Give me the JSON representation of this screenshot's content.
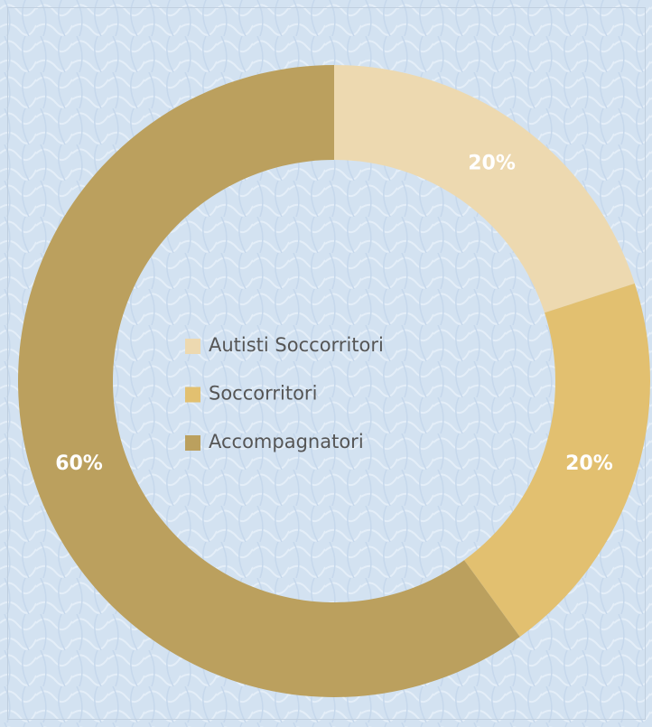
{
  "chart_data": {
    "type": "donut",
    "categories": [
      "Autisti Soccorritori",
      "Soccorritori",
      "Accompagnatori"
    ],
    "values": [
      20,
      20,
      60
    ],
    "value_labels": [
      "20%",
      "20%",
      "60%"
    ],
    "colors": [
      "#edd9b0",
      "#e2c070",
      "#bba05e"
    ]
  }
}
